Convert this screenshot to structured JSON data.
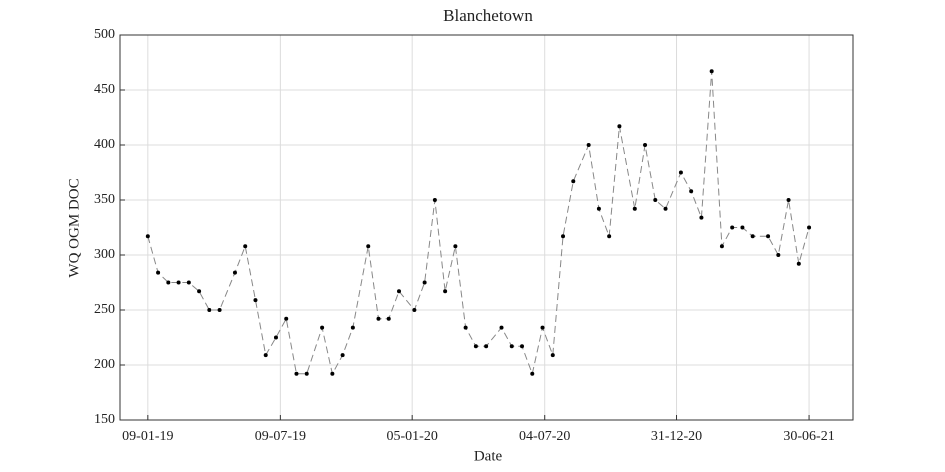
{
  "chart_data": {
    "type": "line",
    "title": "Blanchetown",
    "x_label": "Date",
    "y_label": "WQ OGM DOC",
    "x": [
      "2019-01-09",
      "2019-01-23",
      "2019-02-06",
      "2019-02-20",
      "2019-03-06",
      "2019-03-20",
      "2019-04-03",
      "2019-04-17",
      "2019-05-08",
      "2019-05-22",
      "2019-06-05",
      "2019-06-19",
      "2019-07-03",
      "2019-07-17",
      "2019-07-31",
      "2019-08-14",
      "2019-09-04",
      "2019-09-18",
      "2019-10-02",
      "2019-10-16",
      "2019-11-06",
      "2019-11-20",
      "2019-12-04",
      "2019-12-18",
      "2020-01-08",
      "2020-01-22",
      "2020-02-05",
      "2020-02-19",
      "2020-03-04",
      "2020-03-18",
      "2020-04-01",
      "2020-04-15",
      "2020-05-06",
      "2020-05-20",
      "2020-06-03",
      "2020-06-17",
      "2020-07-01",
      "2020-07-15",
      "2020-07-29",
      "2020-08-12",
      "2020-09-02",
      "2020-09-16",
      "2020-09-30",
      "2020-10-14",
      "2020-11-04",
      "2020-11-18",
      "2020-12-02",
      "2020-12-16",
      "2021-01-06",
      "2021-01-20",
      "2021-02-03",
      "2021-02-17",
      "2021-03-03",
      "2021-03-17",
      "2021-03-31",
      "2021-04-14",
      "2021-05-05",
      "2021-05-19",
      "2021-06-02",
      "2021-06-16",
      "2021-06-30"
    ],
    "series": [
      {
        "name": "WQ OGM DOC",
        "color": "#888888",
        "marker_color": "#000000",
        "values": [
          317,
          284,
          275,
          275,
          275,
          267,
          250,
          250,
          284,
          308,
          259,
          209,
          225,
          242,
          192,
          192,
          234,
          192,
          209,
          234,
          308,
          242,
          242,
          267,
          250,
          275,
          350,
          267,
          308,
          234,
          217,
          217,
          234,
          217,
          217,
          192,
          234,
          209,
          317,
          367,
          400,
          342,
          317,
          417,
          342,
          400,
          350,
          342,
          375,
          358,
          334,
          467,
          308,
          325,
          325,
          317,
          317,
          300,
          350,
          292,
          325
        ]
      }
    ],
    "xlim": [
      "2018-12-02",
      "2021-08-29"
    ],
    "xticks": [
      {
        "value": "2019-01-09",
        "label": "09-01-19"
      },
      {
        "value": "2019-07-09",
        "label": "09-07-19"
      },
      {
        "value": "2020-01-05",
        "label": "05-01-20"
      },
      {
        "value": "2020-07-04",
        "label": "04-07-20"
      },
      {
        "value": "2020-12-31",
        "label": "31-12-20"
      },
      {
        "value": "2021-06-30",
        "label": "30-06-21"
      }
    ],
    "ylim": [
      150,
      500
    ],
    "yticks": [
      150,
      200,
      250,
      300,
      350,
      400,
      450,
      500
    ],
    "grid": true
  }
}
